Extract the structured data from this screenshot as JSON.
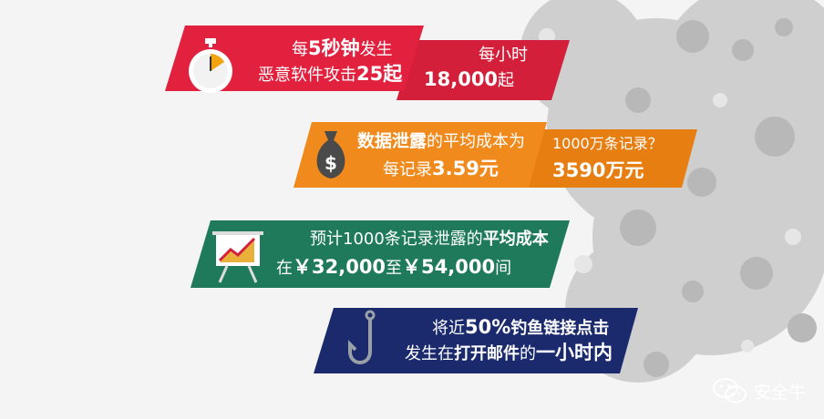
{
  "banner1": {
    "line1_pre": "每",
    "line1_num": "5秒钟",
    "line1_post": "发生",
    "line2_pre": "恶意软件攻击",
    "line2_num": "25起",
    "side_line1": "每小时",
    "side_num": "18,000",
    "side_unit": "起",
    "icon": "stopwatch-icon",
    "color": "#e2213f",
    "side_color": "#d31f3a"
  },
  "banner2": {
    "line1_bold": "数据泄露",
    "line1_post": "的平均成本为",
    "line2_pre": "每记录",
    "line2_num": "3.59元",
    "side_line1": "1000万条记录？",
    "side_line2": "3590万元",
    "icon": "money-bag-icon",
    "color": "#f08a1c",
    "side_color": "#e67e12"
  },
  "banner3": {
    "line1_pre": "预计1000条记录泄露的",
    "line1_bold": "平均成本",
    "line2_pre": "在",
    "line2_num1": "￥32,000",
    "line2_mid": "至",
    "line2_num2": "￥54,000",
    "line2_post": "间",
    "icon": "presentation-chart-icon",
    "color": "#1e7a5a"
  },
  "banner4": {
    "line1_pre": "将近",
    "line1_num": "50%",
    "line1_bold": "钓鱼链接点击",
    "line2_pre": "发生在",
    "line2_bold": "打开邮件",
    "line2_mid": "的",
    "line2_num": "一小时内",
    "icon": "fish-hook-icon",
    "color": "#1a2a6c"
  },
  "watermark": {
    "text": "安全牛",
    "icon": "wechat-icon"
  }
}
